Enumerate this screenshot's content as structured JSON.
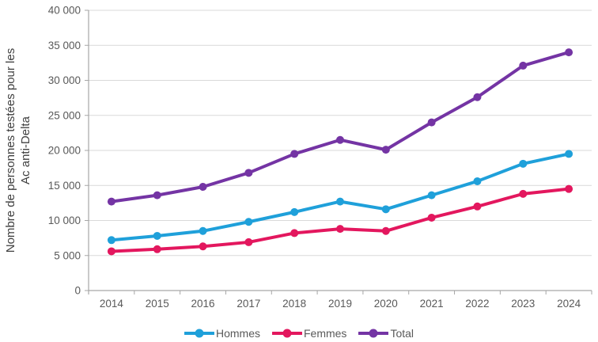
{
  "chart_data": {
    "type": "line",
    "title": "",
    "ylabel_lines": [
      "Nombre de personnes testées pour les",
      "Ac anti-Delta"
    ],
    "xlabel": "",
    "categories": [
      "2014",
      "2015",
      "2016",
      "2017",
      "2018",
      "2019",
      "2020",
      "2021",
      "2022",
      "2023",
      "2024"
    ],
    "series": [
      {
        "name": "Hommes",
        "color": "#1FA0DA",
        "values": [
          7200,
          7800,
          8500,
          9800,
          11200,
          12700,
          11600,
          13600,
          15600,
          18100,
          19500
        ]
      },
      {
        "name": "Femmes",
        "color": "#E3175E",
        "values": [
          5600,
          5900,
          6300,
          6900,
          8200,
          8800,
          8500,
          10400,
          12000,
          13800,
          14500
        ]
      },
      {
        "name": "Total",
        "color": "#7434A4",
        "values": [
          12700,
          13600,
          14800,
          16800,
          19500,
          21500,
          20100,
          24000,
          27600,
          32100,
          34000
        ]
      }
    ],
    "ylim": [
      0,
      40000
    ],
    "ytick_values": [
      0,
      5000,
      10000,
      15000,
      20000,
      25000,
      30000,
      35000,
      40000
    ],
    "ytick_labels": [
      "0",
      "5 000",
      "10 000",
      "15 000",
      "20 000",
      "25 000",
      "30 000",
      "35 000",
      "40 000"
    ],
    "grid": "horizontal",
    "legend_position": "bottom"
  },
  "colors": {
    "gridline": "#D9D9D9",
    "axis": "#A6A6A6",
    "tick_text": "#595959",
    "axis_title_text": "#3F3F3F"
  }
}
